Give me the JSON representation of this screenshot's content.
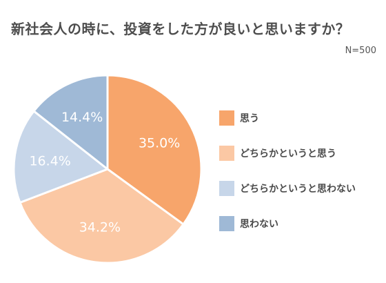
{
  "chart_data": {
    "type": "pie",
    "title": "新社会人の時に、投資をした方が良いと思いますか？",
    "subtitle": "N=500",
    "categories": [
      "思う",
      "どちらかというと思う",
      "どちらかというと思わない",
      "思わない"
    ],
    "values": [
      35.0,
      34.2,
      16.4,
      14.4
    ],
    "value_labels": [
      "35.0%",
      "34.2%",
      "16.4%",
      "14.4%"
    ],
    "unit": "%",
    "start": "12 o'clock",
    "direction": "clockwise",
    "legend_position": "right",
    "colors": [
      "#f7a56b",
      "#fbc8a4",
      "#c7d6e9",
      "#9fb9d6"
    ]
  }
}
